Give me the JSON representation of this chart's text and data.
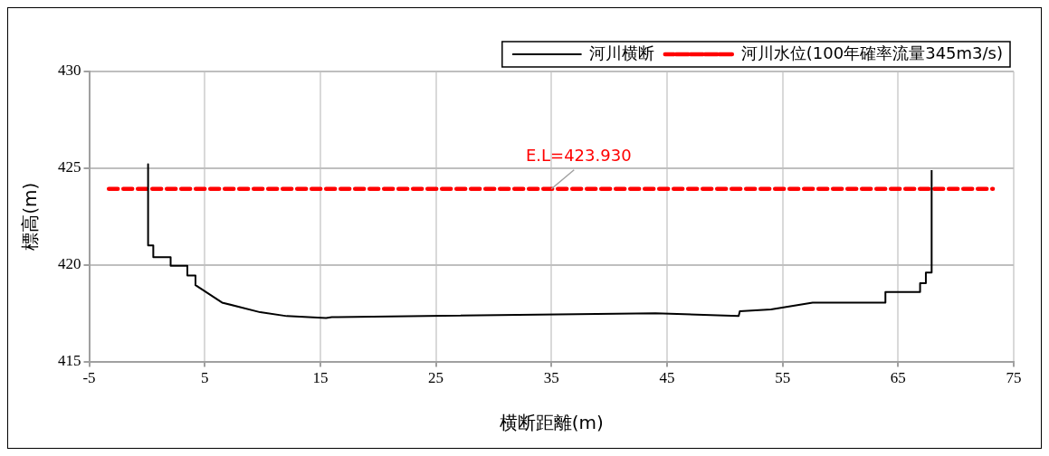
{
  "chart_data": {
    "type": "line",
    "xlabel": "横断距離(m)",
    "ylabel": "標高(m)",
    "xlim": [
      -5,
      75
    ],
    "xticks": [
      -5,
      5,
      15,
      25,
      35,
      45,
      55,
      65,
      75
    ],
    "ylim": [
      415,
      430
    ],
    "yticks": [
      415,
      420,
      425,
      430
    ],
    "grid": true,
    "legend": "top right",
    "marker": "none",
    "series": [
      {
        "name": "河川横断",
        "color": "#000000",
        "line_style": "solid",
        "x": [
          0.1,
          0.1,
          0.55,
          0.55,
          2.05,
          2.05,
          3.5,
          3.5,
          4.2,
          4.2,
          6.5,
          9.8,
          12.1,
          15.5,
          16.0,
          16.5,
          44,
          51.2,
          51.3,
          54,
          57.6,
          63.9,
          63.9,
          66.9,
          66.9,
          67.4,
          67.4,
          67.9,
          67.9
        ],
        "values": [
          425.2,
          421.0,
          421.0,
          420.4,
          420.4,
          419.95,
          419.95,
          419.45,
          419.45,
          418.95,
          418.05,
          417.55,
          417.35,
          417.25,
          417.3,
          417.3,
          417.5,
          417.35,
          417.6,
          417.7,
          418.05,
          418.05,
          418.6,
          418.6,
          419.05,
          419.05,
          419.6,
          419.6,
          424.9
        ]
      },
      {
        "name": "河川水位(100年確率流量345m3/s)",
        "color": "#ff0000",
        "line_style": "dashed",
        "x": [
          -3.3,
          73.2
        ],
        "values": [
          423.93,
          423.93
        ]
      }
    ],
    "annotations": [
      {
        "text": "E.L=423.930",
        "x": 35,
        "y": 423.93
      }
    ]
  }
}
